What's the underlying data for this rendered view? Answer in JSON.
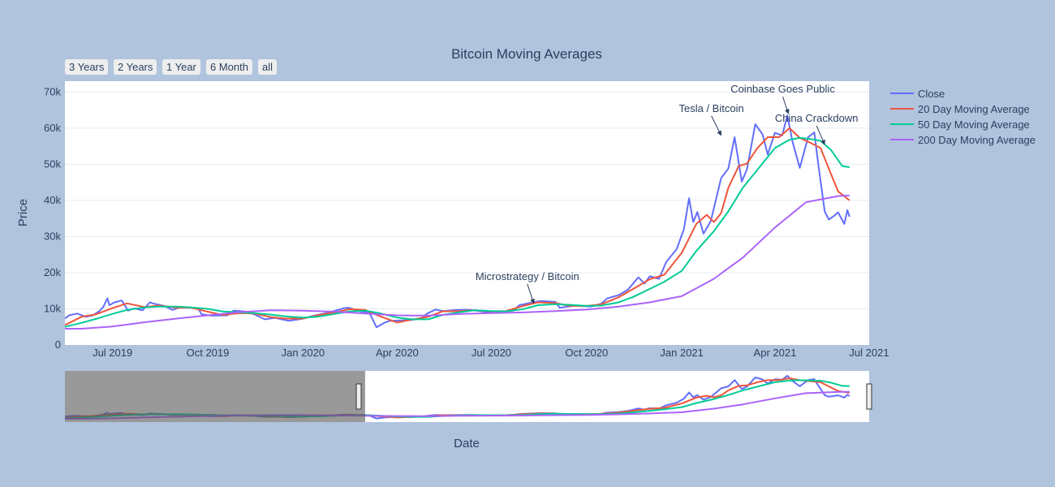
{
  "chart_data": {
    "type": "line",
    "title": "Bitcoin Moving Averages",
    "xlabel": "Date",
    "ylabel": "Price",
    "x_ticks": [
      "Jul 2019",
      "Oct 2019",
      "Jan 2020",
      "Apr 2020",
      "Jul 2020",
      "Oct 2020",
      "Jan 2021",
      "Apr 2021",
      "Jul 2021"
    ],
    "y_ticks": [
      "0",
      "10k",
      "20k",
      "30k",
      "40k",
      "50k",
      "60k",
      "70k"
    ],
    "xlim": [
      "2019-05-16",
      "2021-07-01"
    ],
    "ylim": [
      0,
      73000
    ],
    "range_selector": [
      "3 Years",
      "2 Years",
      "1 Year",
      "6 Month",
      "all"
    ],
    "range_slider": {
      "shaded_until": "2020-03-01"
    },
    "series": [
      {
        "name": "Close",
        "color": "#636efa",
        "points": [
          [
            "2019-05-16",
            7300
          ],
          [
            "2019-05-20",
            8200
          ],
          [
            "2019-05-28",
            8700
          ],
          [
            "2019-06-05",
            7800
          ],
          [
            "2019-06-12",
            8200
          ],
          [
            "2019-06-18",
            9300
          ],
          [
            "2019-06-22",
            10500
          ],
          [
            "2019-06-26",
            12900
          ],
          [
            "2019-06-28",
            11000
          ],
          [
            "2019-07-03",
            11800
          ],
          [
            "2019-07-10",
            12300
          ],
          [
            "2019-07-16",
            9500
          ],
          [
            "2019-07-22",
            10100
          ],
          [
            "2019-07-30",
            9600
          ],
          [
            "2019-08-06",
            11800
          ],
          [
            "2019-08-10",
            11400
          ],
          [
            "2019-08-20",
            10800
          ],
          [
            "2019-08-28",
            9700
          ],
          [
            "2019-09-05",
            10500
          ],
          [
            "2019-09-15",
            10300
          ],
          [
            "2019-09-22",
            10000
          ],
          [
            "2019-09-25",
            8500
          ],
          [
            "2019-10-05",
            8100
          ],
          [
            "2019-10-20",
            8200
          ],
          [
            "2019-10-26",
            9500
          ],
          [
            "2019-11-05",
            9300
          ],
          [
            "2019-11-15",
            8500
          ],
          [
            "2019-11-25",
            7100
          ],
          [
            "2019-12-05",
            7500
          ],
          [
            "2019-12-18",
            6700
          ],
          [
            "2019-12-31",
            7200
          ],
          [
            "2020-01-10",
            8000
          ],
          [
            "2020-01-20",
            8600
          ],
          [
            "2020-01-31",
            9400
          ],
          [
            "2020-02-10",
            10200
          ],
          [
            "2020-02-14",
            10300
          ],
          [
            "2020-02-25",
            9300
          ],
          [
            "2020-03-05",
            9000
          ],
          [
            "2020-03-12",
            4900
          ],
          [
            "2020-03-20",
            6200
          ],
          [
            "2020-03-25",
            6700
          ],
          [
            "2020-04-05",
            6800
          ],
          [
            "2020-04-15",
            6900
          ],
          [
            "2020-04-25",
            7500
          ],
          [
            "2020-04-30",
            8700
          ],
          [
            "2020-05-08",
            9800
          ],
          [
            "2020-05-15",
            9400
          ],
          [
            "2020-05-30",
            9700
          ],
          [
            "2020-06-10",
            9700
          ],
          [
            "2020-06-25",
            9200
          ],
          [
            "2020-07-10",
            9200
          ],
          [
            "2020-07-22",
            9500
          ],
          [
            "2020-07-28",
            11000
          ],
          [
            "2020-08-10",
            11800
          ],
          [
            "2020-08-18",
            12200
          ],
          [
            "2020-09-01",
            11900
          ],
          [
            "2020-09-05",
            10300
          ],
          [
            "2020-09-20",
            10900
          ],
          [
            "2020-10-05",
            10600
          ],
          [
            "2020-10-15",
            11400
          ],
          [
            "2020-10-21",
            12900
          ],
          [
            "2020-11-01",
            13800
          ],
          [
            "2020-11-10",
            15300
          ],
          [
            "2020-11-20",
            18700
          ],
          [
            "2020-11-26",
            17000
          ],
          [
            "2020-12-01",
            19000
          ],
          [
            "2020-12-10",
            18300
          ],
          [
            "2020-12-17",
            23000
          ],
          [
            "2020-12-27",
            26500
          ],
          [
            "2021-01-03",
            32000
          ],
          [
            "2021-01-08",
            40600
          ],
          [
            "2021-01-12",
            34000
          ],
          [
            "2021-01-16",
            36800
          ],
          [
            "2021-01-22",
            30800
          ],
          [
            "2021-01-29",
            34300
          ],
          [
            "2021-02-08",
            46200
          ],
          [
            "2021-02-15",
            48800
          ],
          [
            "2021-02-21",
            57500
          ],
          [
            "2021-02-28",
            45200
          ],
          [
            "2021-03-05",
            48700
          ],
          [
            "2021-03-13",
            61100
          ],
          [
            "2021-03-20",
            58300
          ],
          [
            "2021-03-25",
            52700
          ],
          [
            "2021-04-01",
            58700
          ],
          [
            "2021-04-08",
            58000
          ],
          [
            "2021-04-13",
            63500
          ],
          [
            "2021-04-18",
            56200
          ],
          [
            "2021-04-25",
            49000
          ],
          [
            "2021-05-03",
            57500
          ],
          [
            "2021-05-09",
            58800
          ],
          [
            "2021-05-13",
            49700
          ],
          [
            "2021-05-19",
            37000
          ],
          [
            "2021-05-23",
            34700
          ],
          [
            "2021-05-28",
            35700
          ],
          [
            "2021-06-01",
            36700
          ],
          [
            "2021-06-07",
            33500
          ],
          [
            "2021-06-10",
            37300
          ],
          [
            "2021-06-12",
            35500
          ]
        ]
      },
      {
        "name": "20 Day Moving Average",
        "color": "#ef553b",
        "points": [
          [
            "2019-05-16",
            5500
          ],
          [
            "2019-06-01",
            7800
          ],
          [
            "2019-06-15",
            8500
          ],
          [
            "2019-07-01",
            10200
          ],
          [
            "2019-07-15",
            11500
          ],
          [
            "2019-08-01",
            10500
          ],
          [
            "2019-08-15",
            10900
          ],
          [
            "2019-09-01",
            10300
          ],
          [
            "2019-09-15",
            10300
          ],
          [
            "2019-10-01",
            9200
          ],
          [
            "2019-10-15",
            8300
          ],
          [
            "2019-11-01",
            8800
          ],
          [
            "2019-11-15",
            8700
          ],
          [
            "2019-12-01",
            7700
          ],
          [
            "2019-12-15",
            7300
          ],
          [
            "2020-01-01",
            7300
          ],
          [
            "2020-01-15",
            8200
          ],
          [
            "2020-02-01",
            9000
          ],
          [
            "2020-02-15",
            9900
          ],
          [
            "2020-03-01",
            9700
          ],
          [
            "2020-03-15",
            8000
          ],
          [
            "2020-04-01",
            6200
          ],
          [
            "2020-04-15",
            7000
          ],
          [
            "2020-05-01",
            7800
          ],
          [
            "2020-05-15",
            9300
          ],
          [
            "2020-06-01",
            9400
          ],
          [
            "2020-06-15",
            9600
          ],
          [
            "2020-07-01",
            9300
          ],
          [
            "2020-07-15",
            9400
          ],
          [
            "2020-08-01",
            10800
          ],
          [
            "2020-08-15",
            11800
          ],
          [
            "2020-09-01",
            11600
          ],
          [
            "2020-09-15",
            10800
          ],
          [
            "2020-10-01",
            10800
          ],
          [
            "2020-10-15",
            11200
          ],
          [
            "2020-11-01",
            13200
          ],
          [
            "2020-11-15",
            15500
          ],
          [
            "2020-12-01",
            18200
          ],
          [
            "2020-12-15",
            19400
          ],
          [
            "2021-01-01",
            25500
          ],
          [
            "2021-01-15",
            33500
          ],
          [
            "2021-01-25",
            36000
          ],
          [
            "2021-02-01",
            34000
          ],
          [
            "2021-02-08",
            36500
          ],
          [
            "2021-02-15",
            43500
          ],
          [
            "2021-02-25",
            49500
          ],
          [
            "2021-03-05",
            50200
          ],
          [
            "2021-03-15",
            54500
          ],
          [
            "2021-03-25",
            57500
          ],
          [
            "2021-04-05",
            57500
          ],
          [
            "2021-04-15",
            60000
          ],
          [
            "2021-04-25",
            57300
          ],
          [
            "2021-05-05",
            56000
          ],
          [
            "2021-05-15",
            54500
          ],
          [
            "2021-05-22",
            49500
          ],
          [
            "2021-06-01",
            42500
          ],
          [
            "2021-06-12",
            40000
          ]
        ]
      },
      {
        "name": "50 Day Moving Average",
        "color": "#00cc96",
        "points": [
          [
            "2019-05-16",
            5000
          ],
          [
            "2019-06-01",
            6100
          ],
          [
            "2019-06-15",
            7200
          ],
          [
            "2019-07-01",
            8600
          ],
          [
            "2019-07-15",
            9700
          ],
          [
            "2019-08-01",
            10400
          ],
          [
            "2019-08-15",
            10600
          ],
          [
            "2019-09-01",
            10600
          ],
          [
            "2019-09-15",
            10400
          ],
          [
            "2019-10-01",
            10000
          ],
          [
            "2019-10-15",
            9300
          ],
          [
            "2019-11-01",
            9000
          ],
          [
            "2019-11-15",
            8800
          ],
          [
            "2019-12-01",
            8400
          ],
          [
            "2019-12-15",
            7900
          ],
          [
            "2020-01-01",
            7600
          ],
          [
            "2020-01-15",
            7800
          ],
          [
            "2020-02-01",
            8600
          ],
          [
            "2020-02-15",
            9300
          ],
          [
            "2020-03-01",
            9500
          ],
          [
            "2020-03-15",
            8800
          ],
          [
            "2020-04-01",
            7600
          ],
          [
            "2020-04-15",
            7100
          ],
          [
            "2020-05-01",
            7100
          ],
          [
            "2020-05-15",
            8300
          ],
          [
            "2020-06-01",
            9100
          ],
          [
            "2020-06-15",
            9600
          ],
          [
            "2020-07-01",
            9400
          ],
          [
            "2020-07-15",
            9300
          ],
          [
            "2020-08-01",
            9900
          ],
          [
            "2020-08-15",
            11000
          ],
          [
            "2020-09-01",
            11300
          ],
          [
            "2020-09-15",
            11100
          ],
          [
            "2020-10-01",
            10800
          ],
          [
            "2020-10-15",
            10900
          ],
          [
            "2020-11-01",
            11800
          ],
          [
            "2020-11-15",
            13300
          ],
          [
            "2020-12-01",
            15500
          ],
          [
            "2020-12-15",
            17500
          ],
          [
            "2021-01-01",
            20500
          ],
          [
            "2021-01-15",
            26000
          ],
          [
            "2021-02-01",
            31500
          ],
          [
            "2021-02-15",
            37000
          ],
          [
            "2021-03-01",
            43500
          ],
          [
            "2021-03-15",
            48500
          ],
          [
            "2021-04-01",
            54500
          ],
          [
            "2021-04-15",
            56800
          ],
          [
            "2021-04-25",
            57300
          ],
          [
            "2021-05-05",
            57000
          ],
          [
            "2021-05-15",
            56500
          ],
          [
            "2021-05-25",
            54000
          ],
          [
            "2021-06-05",
            49500
          ],
          [
            "2021-06-12",
            49200
          ]
        ]
      },
      {
        "name": "200 Day Moving Average",
        "color": "#ab63fa",
        "points": [
          [
            "2019-05-16",
            4500
          ],
          [
            "2019-06-01",
            4500
          ],
          [
            "2019-07-01",
            5100
          ],
          [
            "2019-08-01",
            6300
          ],
          [
            "2019-09-01",
            7300
          ],
          [
            "2019-10-01",
            8200
          ],
          [
            "2019-11-01",
            9100
          ],
          [
            "2019-12-01",
            9600
          ],
          [
            "2020-01-01",
            9500
          ],
          [
            "2020-02-01",
            9200
          ],
          [
            "2020-03-01",
            8700
          ],
          [
            "2020-04-01",
            8200
          ],
          [
            "2020-05-01",
            8100
          ],
          [
            "2020-06-01",
            8600
          ],
          [
            "2020-07-01",
            8800
          ],
          [
            "2020-08-01",
            9000
          ],
          [
            "2020-09-01",
            9400
          ],
          [
            "2020-10-01",
            9800
          ],
          [
            "2020-11-01",
            10600
          ],
          [
            "2020-12-01",
            11800
          ],
          [
            "2021-01-01",
            13500
          ],
          [
            "2021-02-01",
            18300
          ],
          [
            "2021-03-01",
            24200
          ],
          [
            "2021-04-01",
            32500
          ],
          [
            "2021-05-01",
            39500
          ],
          [
            "2021-06-01",
            41200
          ],
          [
            "2021-06-12",
            41400
          ]
        ]
      }
    ],
    "annotations": [
      {
        "text": "Tesla / Bitcoin",
        "x": "2021-02-08",
        "y": 58000
      },
      {
        "text": "Coinbase Goes Public",
        "x": "2021-04-14",
        "y": 64000
      },
      {
        "text": "China Crackdown",
        "x": "2021-05-19",
        "y": 55500
      },
      {
        "text": "Microstrategy / Bitcoin",
        "x": "2020-08-11",
        "y": 11500
      }
    ]
  }
}
